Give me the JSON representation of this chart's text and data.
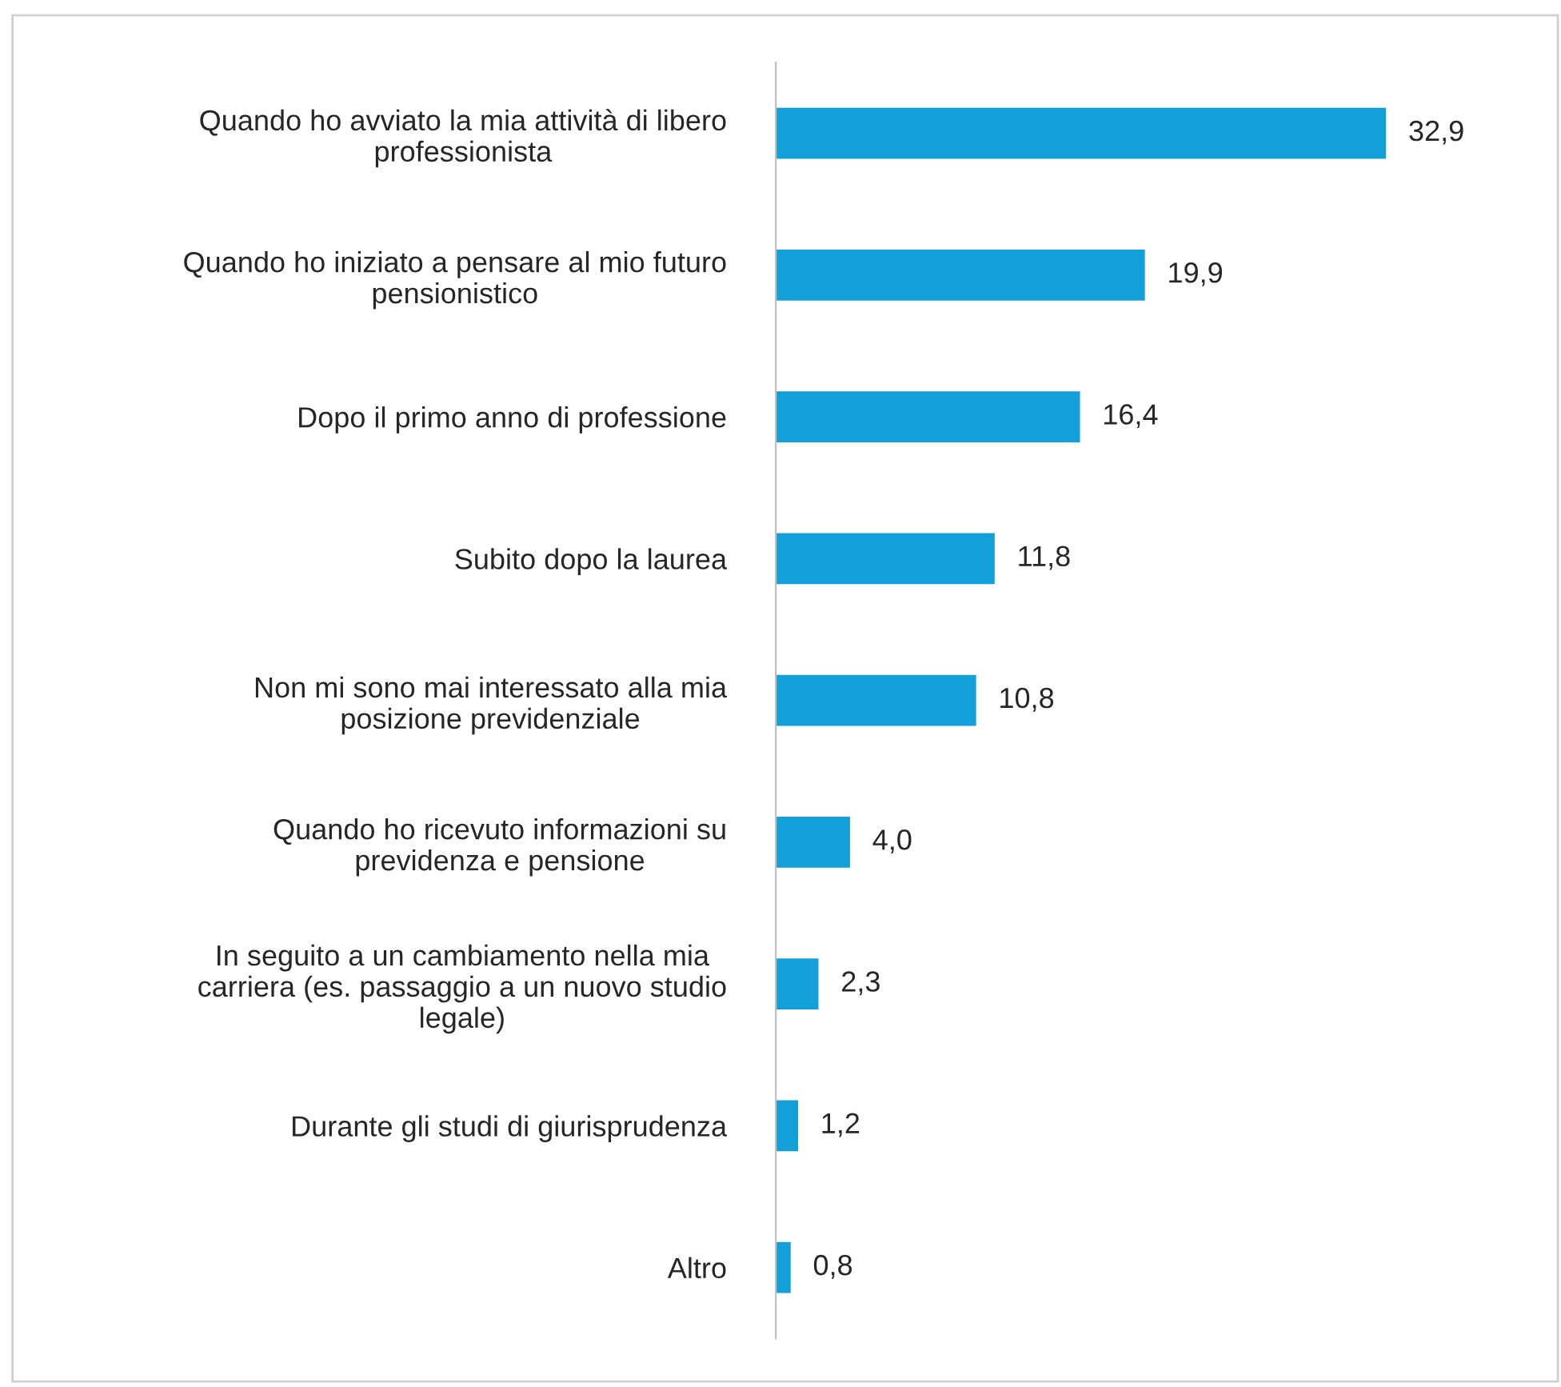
{
  "chart_data": {
    "type": "bar",
    "orientation": "horizontal",
    "categories": [
      "Quando ho avviato la mia attività di libero\nprofessionista",
      "Quando ho iniziato a pensare al mio futuro\npensionistico",
      "Dopo il primo anno di professione",
      "Subito dopo la laurea",
      "Non mi sono mai interessato alla mia\nposizione previdenziale",
      "Quando ho ricevuto informazioni su\nprevidenza e pensione",
      "In seguito a un cambiamento nella mia\ncarriera (es. passaggio a un nuovo studio\nlegale)",
      "Durante gli studi di giurisprudenza",
      "Altro"
    ],
    "values": [
      32.9,
      19.9,
      16.4,
      11.8,
      10.8,
      4.0,
      2.3,
      1.2,
      0.8
    ],
    "value_labels": [
      "32,9",
      "19,9",
      "16,4",
      "11,8",
      "10,8",
      "4,0",
      "2,3",
      "1,2",
      "0,8"
    ],
    "color": "#139fd7",
    "grid": false,
    "legend": false
  }
}
